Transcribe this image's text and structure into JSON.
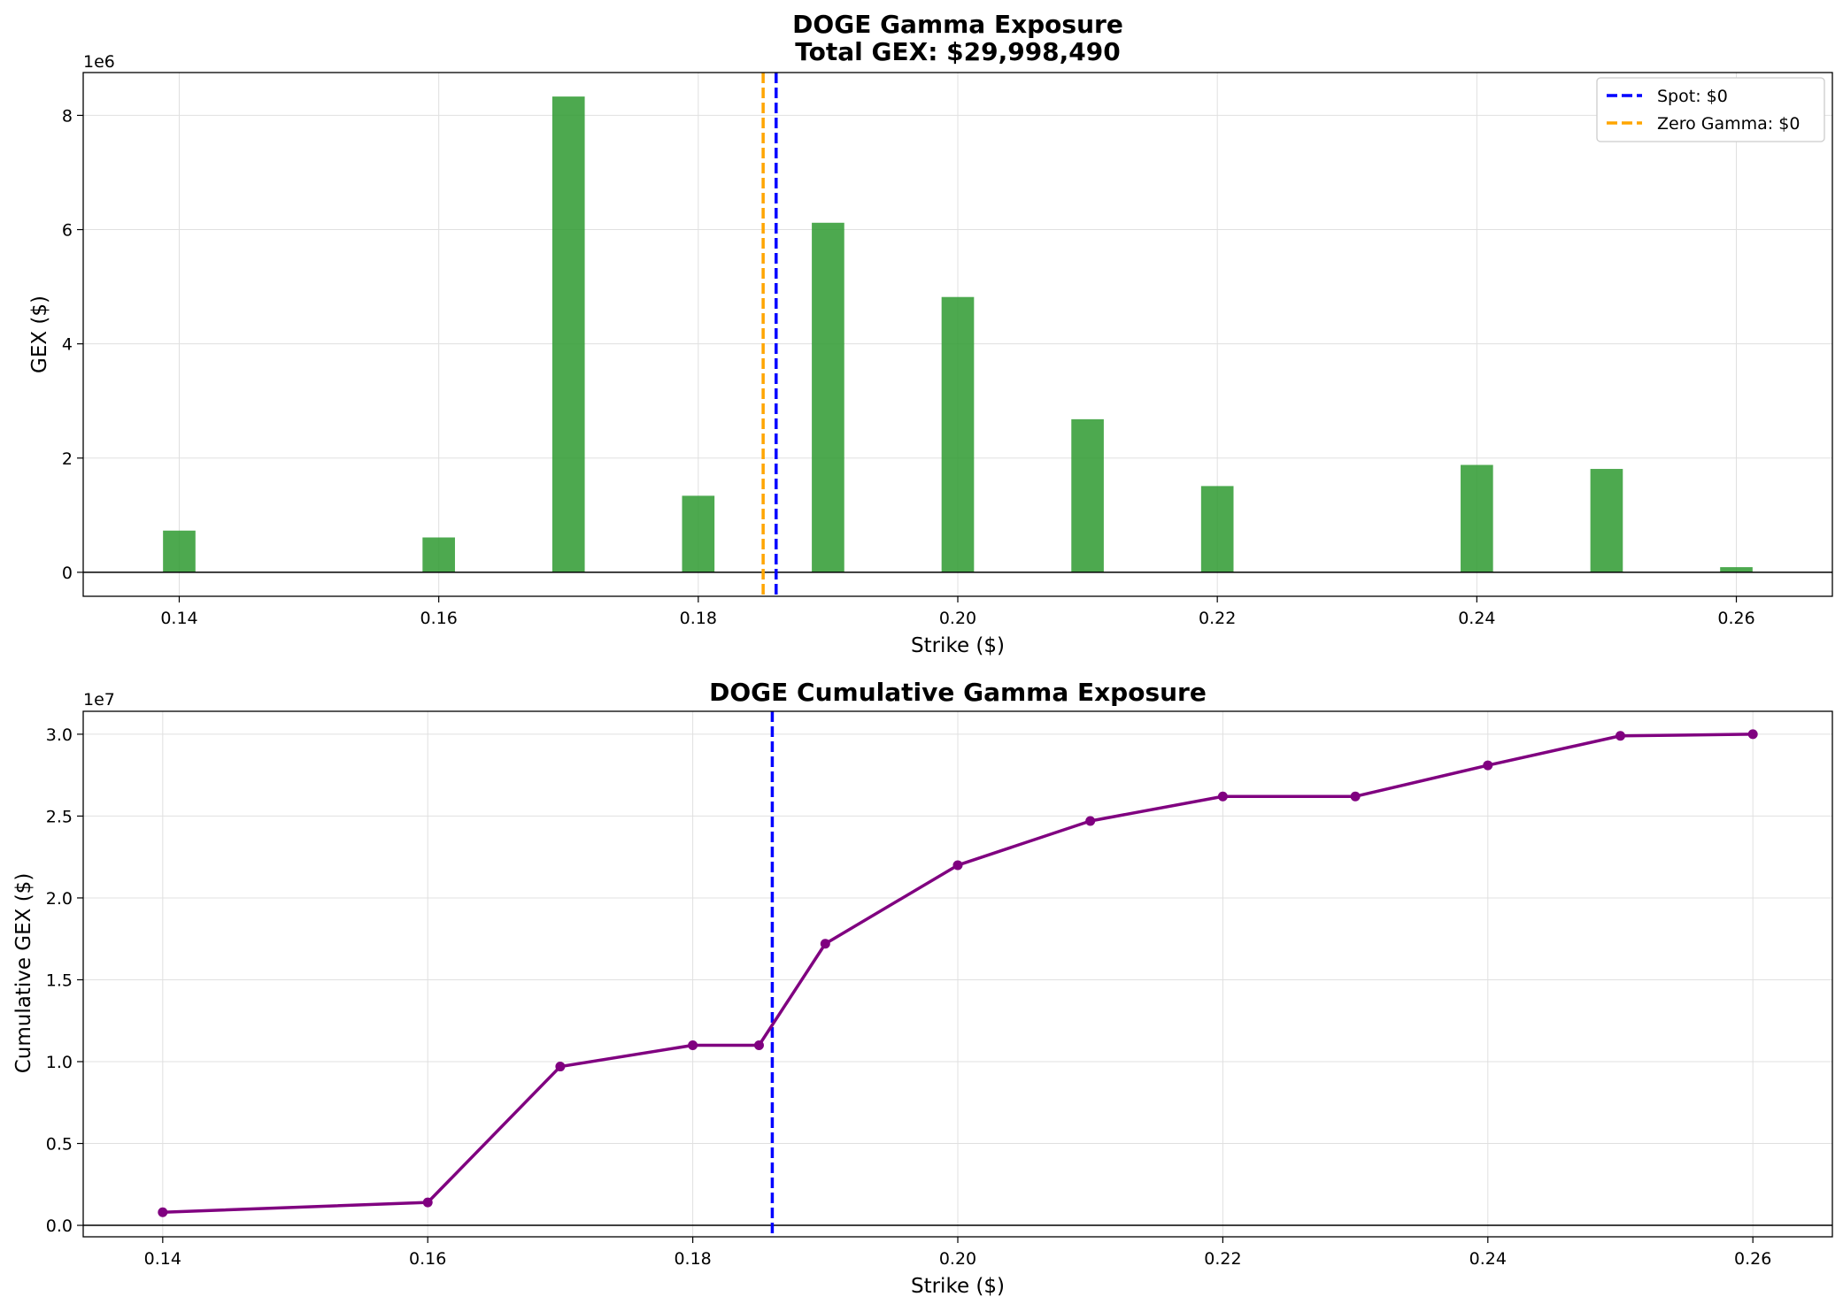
{
  "chart_data": [
    {
      "type": "bar",
      "title": "DOGE Gamma Exposure",
      "subtitle": "Total GEX: $29,998,490",
      "xlabel": "Strike ($)",
      "ylabel": "GEX ($)",
      "y_offset_label": "1e6",
      "xlim": [
        0.1326,
        0.2674
      ],
      "ylim": [
        -0.42,
        8.75
      ],
      "x_ticks": [
        0.14,
        0.16,
        0.18,
        0.2,
        0.22,
        0.24,
        0.26
      ],
      "x_tick_labels": [
        "0.14",
        "0.16",
        "0.18",
        "0.20",
        "0.22",
        "0.24",
        "0.26"
      ],
      "y_ticks": [
        0,
        2,
        4,
        6,
        8
      ],
      "y_tick_labels": [
        "0",
        "2",
        "4",
        "6",
        "8"
      ],
      "grid": true,
      "bar_width": 0.0025,
      "bar_color": "#2e9a30",
      "categories": [
        0.14,
        0.16,
        0.17,
        0.18,
        0.19,
        0.2,
        0.21,
        0.22,
        0.24,
        0.25,
        0.26
      ],
      "values": [
        0.73,
        0.61,
        8.33,
        1.34,
        6.12,
        4.82,
        2.68,
        1.51,
        1.88,
        1.81,
        0.09
      ],
      "vlines": [
        {
          "name": "Spot: $0",
          "x": 0.186,
          "color": "#0000ff",
          "style": "dashed"
        },
        {
          "name": "Zero Gamma: $0",
          "x": 0.185,
          "color": "#ffa500",
          "style": "dashed"
        }
      ],
      "hline_zero": true,
      "legend": {
        "position": "top-right",
        "entries": [
          "Spot: $0",
          "Zero Gamma: $0"
        ]
      }
    },
    {
      "type": "line",
      "title": "DOGE Cumulative Gamma Exposure",
      "xlabel": "Strike ($)",
      "ylabel": "Cumulative GEX ($)",
      "y_offset_label": "1e7",
      "xlim": [
        0.134,
        0.266
      ],
      "ylim": [
        -0.07,
        3.14
      ],
      "x_ticks": [
        0.14,
        0.16,
        0.18,
        0.2,
        0.22,
        0.24,
        0.26
      ],
      "x_tick_labels": [
        "0.14",
        "0.16",
        "0.18",
        "0.20",
        "0.22",
        "0.24",
        "0.26"
      ],
      "y_ticks": [
        0.0,
        0.5,
        1.0,
        1.5,
        2.0,
        2.5,
        3.0
      ],
      "y_tick_labels": [
        "0.0",
        "0.5",
        "1.0",
        "1.5",
        "2.0",
        "2.5",
        "3.0"
      ],
      "grid": true,
      "line_color": "#800080",
      "x": [
        0.14,
        0.16,
        0.17,
        0.18,
        0.185,
        0.19,
        0.2,
        0.21,
        0.22,
        0.23,
        0.24,
        0.25,
        0.26
      ],
      "y": [
        0.08,
        0.14,
        0.97,
        1.1,
        1.1,
        1.72,
        2.2,
        2.47,
        2.62,
        2.62,
        2.81,
        2.99,
        3.0
      ],
      "vlines": [
        {
          "x": 0.186,
          "color": "#0000ff",
          "style": "dashed"
        }
      ],
      "hline_zero": true
    }
  ]
}
